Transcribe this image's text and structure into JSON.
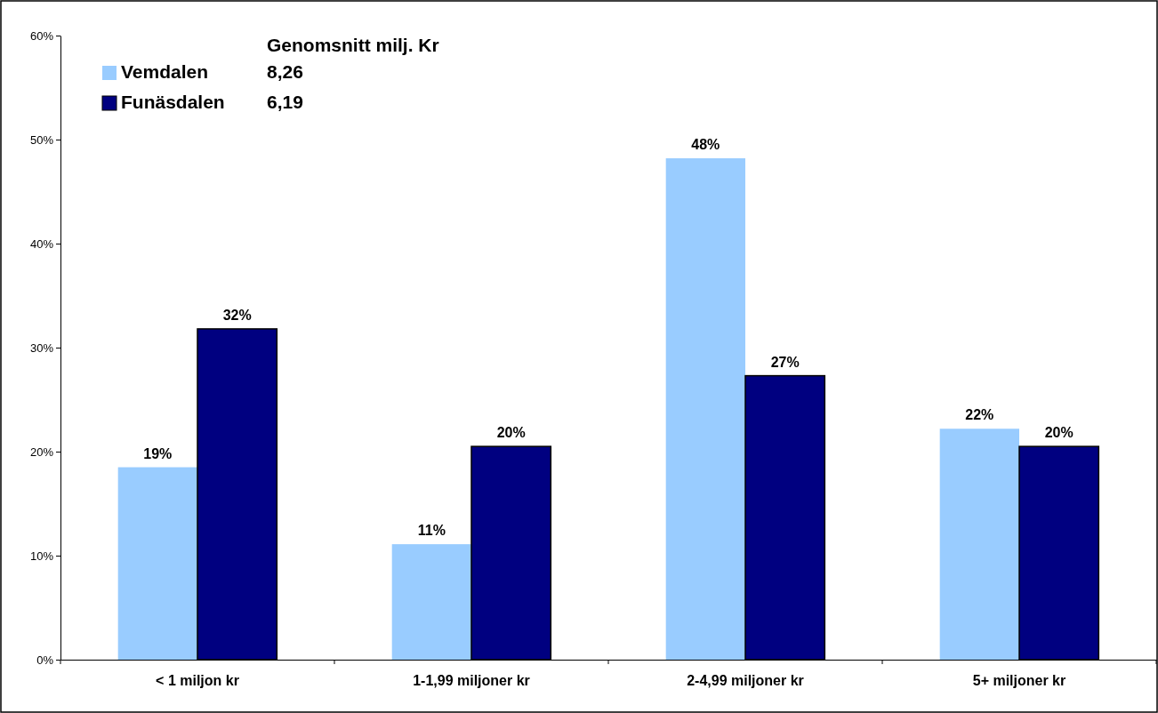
{
  "chart_data": {
    "type": "bar",
    "categories": [
      "< 1 miljon kr",
      "1-1,99 miljoner kr",
      "2-4,99 miljoner kr",
      "5+ miljoner kr"
    ],
    "series": [
      {
        "name": "Vemdalen",
        "color": "#99ccff",
        "values": [
          18.5,
          11.1,
          48.2,
          22.2
        ],
        "value_labels": [
          "19%",
          "11%",
          "48%",
          "22%"
        ]
      },
      {
        "name": "Funäsdalen",
        "color": "#000080",
        "values": [
          31.8,
          20.5,
          27.3,
          20.5
        ],
        "value_labels": [
          "32%",
          "20%",
          "27%",
          "20%"
        ]
      }
    ],
    "ylim": [
      0,
      60
    ],
    "yticks": [
      {
        "value": 0,
        "label": "0%"
      },
      {
        "value": 10,
        "label": "10%"
      },
      {
        "value": 20,
        "label": "20%"
      },
      {
        "value": 30,
        "label": "30%"
      },
      {
        "value": 40,
        "label": "40%"
      },
      {
        "value": 50,
        "label": "50%"
      },
      {
        "value": 60,
        "label": "60%"
      }
    ],
    "legend": "top left",
    "annotations": [
      "Genomsnitt milj. Kr",
      "8,26",
      "6,19"
    ]
  }
}
